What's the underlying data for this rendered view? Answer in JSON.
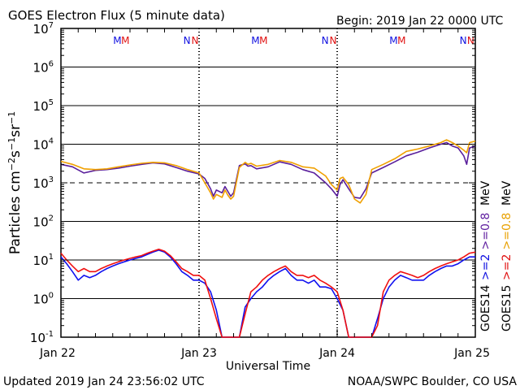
{
  "header": {
    "title": "GOES Electron Flux (5 minute data)",
    "begin": "Begin: 2019 Jan 22 0000 UTC"
  },
  "footer": {
    "updated": "Updated 2019 Jan 24 23:56:02 UTC",
    "credit": "NOAA/SWPC Boulder, CO USA"
  },
  "colors": {
    "goes14_gt08": "#5a1f9c",
    "goes15_gt08": "#f0a000",
    "goes14_gt2": "#1010f0",
    "goes15_gt2": "#f01010",
    "blue_label": "#1010e0",
    "red_label": "#e01010",
    "purple_label": "#6020a0",
    "orange_label": "#e8a000"
  },
  "chart_data": {
    "type": "line",
    "title": "GOES Electron Flux (5 minute data)",
    "xlabel": "Universal Time",
    "ylabel": "Particles cm^-2 s^-1 sr^-1",
    "yscale": "log",
    "ylim": [
      0.1,
      10000000
    ],
    "xlim": [
      0,
      72
    ],
    "x_unit": "hours since 2019 Jan 22 0000 UTC",
    "x_ticks": [
      {
        "x": 0,
        "label": "Jan 22"
      },
      {
        "x": 24,
        "label": "Jan 23"
      },
      {
        "x": 48,
        "label": "Jan 24"
      },
      {
        "x": 72,
        "label": "Jan 25"
      }
    ],
    "y_ticks": [
      {
        "y": 0.1,
        "base": "10",
        "exp": "-1"
      },
      {
        "y": 1,
        "base": "10",
        "exp": "0"
      },
      {
        "y": 10,
        "base": "10",
        "exp": "1"
      },
      {
        "y": 100,
        "base": "10",
        "exp": "2"
      },
      {
        "y": 1000,
        "base": "10",
        "exp": "3"
      },
      {
        "y": 10000,
        "base": "10",
        "exp": "4"
      },
      {
        "y": 100000,
        "base": "10",
        "exp": "5"
      },
      {
        "y": 1000000,
        "base": "10",
        "exp": "6"
      },
      {
        "y": 10000000,
        "base": "10",
        "exp": "7"
      }
    ],
    "grid": true,
    "threshold_line": {
      "y": 1000,
      "style": "dashed"
    },
    "day_boundaries": [
      24,
      48
    ],
    "markers": [
      {
        "x": 9.8,
        "letter": "M",
        "color": "blue"
      },
      {
        "x": 11.2,
        "letter": "M",
        "color": "red"
      },
      {
        "x": 21.9,
        "letter": "N",
        "color": "blue"
      },
      {
        "x": 23.3,
        "letter": "N",
        "color": "red"
      },
      {
        "x": 33.8,
        "letter": "M",
        "color": "blue"
      },
      {
        "x": 35.2,
        "letter": "M",
        "color": "red"
      },
      {
        "x": 45.9,
        "letter": "N",
        "color": "blue"
      },
      {
        "x": 47.3,
        "letter": "N",
        "color": "red"
      },
      {
        "x": 57.8,
        "letter": "M",
        "color": "blue"
      },
      {
        "x": 59.2,
        "letter": "M",
        "color": "red"
      },
      {
        "x": 69.9,
        "letter": "N",
        "color": "blue"
      },
      {
        "x": 71.2,
        "letter": "N",
        "color": "red"
      }
    ],
    "series": [
      {
        "name": "GOES14 >=0.8 MeV",
        "color_key": "goes14_gt08",
        "x": [
          0,
          2,
          4,
          6,
          8,
          10,
          12,
          14,
          16,
          18,
          20,
          22,
          24,
          25,
          26,
          26.5,
          27,
          28,
          28.5,
          29,
          29.5,
          30,
          31,
          32,
          32.5,
          33,
          34,
          36,
          38,
          40,
          42,
          44,
          46,
          47,
          48,
          48.5,
          49,
          50,
          51,
          52,
          53,
          54,
          56,
          58,
          60,
          62,
          64,
          66,
          67,
          68,
          69,
          70,
          70.5,
          71,
          72
        ],
        "y": [
          3000,
          2600,
          1800,
          2100,
          2200,
          2400,
          2700,
          3000,
          3300,
          3100,
          2500,
          2000,
          1700,
          1300,
          700,
          450,
          650,
          550,
          800,
          600,
          450,
          550,
          2800,
          3100,
          2700,
          2800,
          2300,
          2600,
          3500,
          3000,
          2200,
          1800,
          1000,
          700,
          450,
          900,
          1200,
          700,
          420,
          400,
          700,
          1800,
          2500,
          3500,
          5000,
          6200,
          8000,
          10000,
          11000,
          9000,
          8000,
          5000,
          3000,
          8000,
          9000
        ]
      },
      {
        "name": "GOES15 >=0.8 MeV",
        "color_key": "goes15_gt08",
        "x": [
          0,
          2,
          4,
          6,
          8,
          10,
          12,
          14,
          16,
          18,
          20,
          22,
          24,
          25,
          26,
          26.5,
          27,
          28,
          28.5,
          29,
          29.5,
          30,
          31,
          32,
          32.5,
          33,
          34,
          36,
          38,
          40,
          42,
          44,
          46,
          47,
          48,
          48.5,
          49,
          50,
          51,
          52,
          53,
          54,
          56,
          58,
          60,
          62,
          64,
          66,
          67,
          68,
          69,
          70,
          70.5,
          71,
          72
        ],
        "y": [
          3600,
          3000,
          2300,
          2200,
          2300,
          2600,
          2900,
          3200,
          3400,
          3300,
          2800,
          2200,
          1800,
          1000,
          550,
          380,
          500,
          420,
          650,
          480,
          380,
          450,
          2500,
          3400,
          3000,
          3200,
          2700,
          3000,
          3800,
          3400,
          2600,
          2400,
          1500,
          900,
          650,
          1300,
          1400,
          900,
          380,
          300,
          500,
          2200,
          3000,
          4200,
          6500,
          7500,
          9000,
          11000,
          13000,
          11000,
          9000,
          7000,
          6000,
          11000,
          12000
        ]
      },
      {
        "name": "GOES14 >=2 MeV",
        "color_key": "goes14_gt2",
        "x": [
          0,
          1,
          2,
          3,
          4,
          5,
          6,
          7,
          8,
          9,
          10,
          11,
          12,
          13,
          14,
          15,
          16,
          17,
          18,
          19,
          20,
          21,
          22,
          23,
          24,
          25,
          26,
          27,
          28,
          29,
          30,
          31,
          32,
          33,
          34,
          35,
          36,
          37,
          38,
          39,
          40,
          41,
          42,
          43,
          44,
          45,
          46,
          47,
          48,
          49,
          50,
          51,
          52,
          53,
          54,
          55,
          56,
          57,
          58,
          59,
          60,
          61,
          62,
          63,
          64,
          65,
          66,
          67,
          68,
          69,
          70,
          71,
          72
        ],
        "y": [
          12,
          8,
          5,
          3,
          4,
          3.5,
          4,
          5,
          6,
          7,
          8,
          9,
          10,
          11,
          12,
          14,
          16,
          18,
          16,
          12,
          8,
          5,
          4,
          3,
          3,
          2.5,
          1.5,
          0.5,
          0.1,
          0.1,
          0.1,
          0.1,
          0.6,
          1,
          1.5,
          2,
          3,
          4,
          5,
          6,
          4,
          3,
          3,
          2.5,
          3,
          2,
          2,
          1.8,
          1,
          0.5,
          0.1,
          0.1,
          0.1,
          0.1,
          0.1,
          0.3,
          1,
          2,
          3,
          4,
          3.5,
          3,
          3,
          3,
          4,
          5,
          6,
          7,
          7,
          8,
          10,
          12,
          12
        ]
      },
      {
        "name": "GOES15 >=2 MeV",
        "color_key": "goes15_gt2",
        "x": [
          0,
          1,
          2,
          3,
          4,
          5,
          6,
          7,
          8,
          9,
          10,
          11,
          12,
          13,
          14,
          15,
          16,
          17,
          18,
          19,
          20,
          21,
          22,
          23,
          24,
          25,
          26,
          27,
          28,
          29,
          30,
          31,
          32,
          33,
          34,
          35,
          36,
          37,
          38,
          39,
          40,
          41,
          42,
          43,
          44,
          45,
          46,
          47,
          48,
          49,
          50,
          51,
          52,
          53,
          54,
          55,
          56,
          57,
          58,
          59,
          60,
          61,
          62,
          63,
          64,
          65,
          66,
          67,
          68,
          69,
          70,
          71,
          72
        ],
        "y": [
          15,
          10,
          7,
          5,
          6,
          5,
          5,
          6,
          7,
          8,
          9,
          10,
          11,
          12,
          13,
          15,
          17,
          19,
          17,
          13,
          9,
          6,
          5,
          4,
          4,
          3,
          1,
          0.3,
          0.1,
          0.1,
          0.1,
          0.1,
          0.4,
          1.5,
          2,
          3,
          4,
          5,
          6,
          7,
          5,
          4,
          4,
          3.5,
          4,
          3,
          2.5,
          2,
          1.5,
          0.5,
          0.1,
          0.1,
          0.1,
          0.1,
          0.1,
          0.2,
          1.5,
          3,
          4,
          5,
          4.5,
          4,
          3.5,
          4,
          5,
          6,
          7,
          8,
          9,
          10,
          12,
          15,
          16
        ]
      }
    ],
    "right_labels": [
      {
        "text": "GOES14",
        "color_key": "black"
      },
      {
        "text": ">=2",
        "color_key": "blue_label"
      },
      {
        "text": ">=0.8",
        "color_key": "purple_label"
      },
      {
        "text": "MeV",
        "color_key": "black"
      },
      {
        "text": "GOES15",
        "color_key": "black"
      },
      {
        "text": ">=2",
        "color_key": "red_label"
      },
      {
        "text": ">=0.8",
        "color_key": "orange_label"
      },
      {
        "text": "MeV",
        "color_key": "black"
      }
    ]
  }
}
